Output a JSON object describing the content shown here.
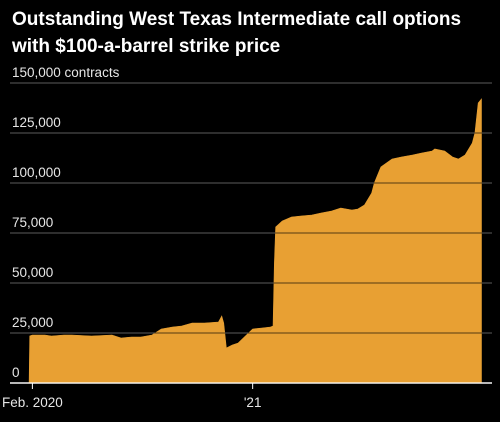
{
  "chart_data": {
    "type": "area",
    "title": "Outstanding West Texas Intermediate call options with $100-a-barrel strike price",
    "ylabel_unit": "contracts",
    "ylim": [
      0,
      150000
    ],
    "yticks": [
      0,
      25000,
      50000,
      75000,
      100000,
      125000,
      150000
    ],
    "ytick_labels": [
      "0",
      "25,000",
      "50,000",
      "75,000",
      "100,000",
      "125,000",
      "150,000 contracts"
    ],
    "xlim": [
      "2020-01-01",
      "2021-12-31"
    ],
    "xticks": [
      {
        "date": "2020-02-01",
        "label": "Feb. 2020"
      },
      {
        "date": "2021-01-01",
        "label": "'21"
      }
    ],
    "grid": true,
    "colors": {
      "fill": "#E8A033",
      "background": "#000000",
      "grid": "#ffffff",
      "text": "#e6e6e6"
    },
    "series": [
      {
        "x": [
          "2020-01-27",
          "2020-01-28",
          "2020-02-01",
          "2020-02-20",
          "2020-03-01",
          "2020-03-20",
          "2020-04-01",
          "2020-05-01",
          "2020-06-01",
          "2020-06-15",
          "2020-07-01",
          "2020-07-15",
          "2020-08-01",
          "2020-08-15",
          "2020-09-01",
          "2020-09-15",
          "2020-10-01",
          "2020-10-20",
          "2020-11-10",
          "2020-11-15",
          "2020-11-18",
          "2020-11-22",
          "2020-12-01",
          "2020-12-10",
          "2021-01-01",
          "2021-01-15",
          "2021-01-28",
          "2021-02-01",
          "2021-02-03",
          "2021-02-05",
          "2021-02-15",
          "2021-03-01",
          "2021-03-15",
          "2021-04-01",
          "2021-04-15",
          "2021-05-01",
          "2021-05-15",
          "2021-06-01",
          "2021-06-10",
          "2021-06-20",
          "2021-07-01",
          "2021-07-05",
          "2021-07-15",
          "2021-08-01",
          "2021-08-15",
          "2021-09-01",
          "2021-09-15",
          "2021-10-01",
          "2021-10-05",
          "2021-10-20",
          "2021-11-01",
          "2021-11-10",
          "2021-11-20",
          "2021-12-01",
          "2021-12-05",
          "2021-12-10",
          "2021-12-15"
        ],
        "values": [
          0,
          23500,
          24000,
          24000,
          23500,
          24000,
          24000,
          23500,
          24000,
          22500,
          23000,
          23000,
          24000,
          27000,
          28000,
          28500,
          30000,
          30000,
          30500,
          33500,
          30000,
          17500,
          19000,
          20000,
          27000,
          27500,
          28000,
          28500,
          60000,
          78000,
          81000,
          83000,
          83500,
          84000,
          85000,
          86000,
          87500,
          86500,
          87000,
          89000,
          95000,
          100000,
          108000,
          112000,
          113000,
          114000,
          115000,
          116000,
          117000,
          116000,
          113000,
          112000,
          114000,
          120000,
          125000,
          140000,
          142000
        ]
      }
    ]
  }
}
